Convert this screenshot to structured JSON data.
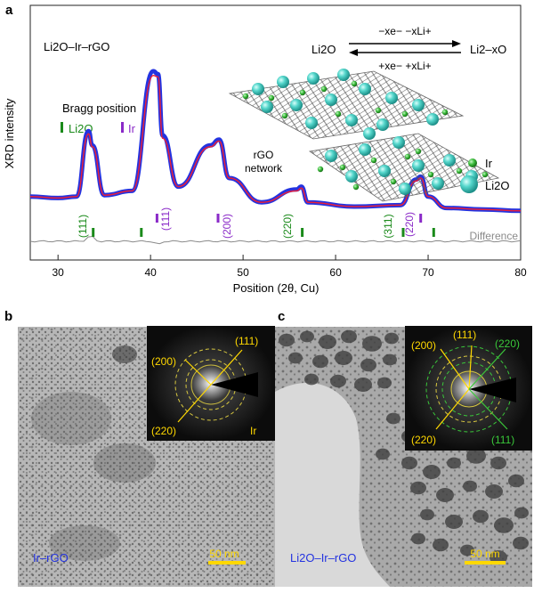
{
  "figure": {
    "panel_a": {
      "letter": "a",
      "sample": "Li2O–Ir–rGO",
      "ylabel": "XRD intensity",
      "xlabel": "Position (2θ, Cu)",
      "xticks": [
        "30",
        "40",
        "50",
        "60",
        "70",
        "80"
      ],
      "bragg_title": "Bragg position",
      "bragg_li2o": "Li2O",
      "bragg_ir": "Ir",
      "difference_label": "Difference",
      "hkl_labels": [
        "(111)",
        "(111)",
        "(200)",
        "(220)",
        "(311)",
        "(220)"
      ],
      "reaction_left": "Li2O",
      "reaction_right": "Li2–xO",
      "reaction_top": "−xe− −xLi+",
      "reaction_bottom": "+xe− +xLi+",
      "network_line1": "rGO",
      "network_line2": "network",
      "legend_ir": "Ir",
      "legend_li2o": "Li2O"
    },
    "panel_b": {
      "letter": "b",
      "sample": "Ir–rGO",
      "scale": "50 nm",
      "saed_labels": [
        "(200)",
        "(111)",
        "(220)",
        "Ir"
      ]
    },
    "panel_c": {
      "letter": "c",
      "sample": "Li2O–Ir–rGO",
      "scale": "50 nm",
      "saed_labels": [
        "(200)",
        "(111)",
        "(220)",
        "(220)",
        "(111)"
      ]
    },
    "colors": {
      "observed": "#2433e0",
      "calculated": "#e8203a",
      "difference": "#8a8a8a",
      "li2o": "#1a8a1a",
      "ir": "#8a2ac8",
      "sphere": "#4fd2c8",
      "label_yellow": "#ffd800"
    }
  },
  "chart_data": {
    "type": "line",
    "xlabel": "Position (2θ, Cu)",
    "ylabel": "XRD intensity",
    "xlim": [
      27,
      80
    ],
    "x": [
      27,
      30,
      32,
      33.3,
      33.7,
      35,
      38,
      40.3,
      40.8,
      41.3,
      43,
      46.5,
      47.4,
      48.5,
      52,
      55.8,
      56.3,
      57,
      62,
      67,
      68.7,
      69.2,
      70,
      72,
      76,
      80
    ],
    "series": [
      {
        "values": [
          0.12,
          0.11,
          0.12,
          0.58,
          0.48,
          0.13,
          0.16,
          1.0,
          0.98,
          0.55,
          0.19,
          0.48,
          0.52,
          0.25,
          0.08,
          0.17,
          0.19,
          0.08,
          0.05,
          0.06,
          0.24,
          0.26,
          0.12,
          0.04,
          0.03,
          0.02
        ]
      },
      {
        "values": [
          0.12,
          0.11,
          0.12,
          0.56,
          0.47,
          0.13,
          0.16,
          0.97,
          0.96,
          0.53,
          0.19,
          0.47,
          0.51,
          0.25,
          0.08,
          0.16,
          0.18,
          0.08,
          0.05,
          0.06,
          0.23,
          0.25,
          0.12,
          0.04,
          0.03,
          0.02
        ]
      }
    ],
    "bragg_positions_li2o": [
      33.8,
      39.0,
      56.4,
      67.3,
      70.6
    ],
    "bragg_positions_ir": [
      40.7,
      47.3,
      69.2
    ]
  }
}
